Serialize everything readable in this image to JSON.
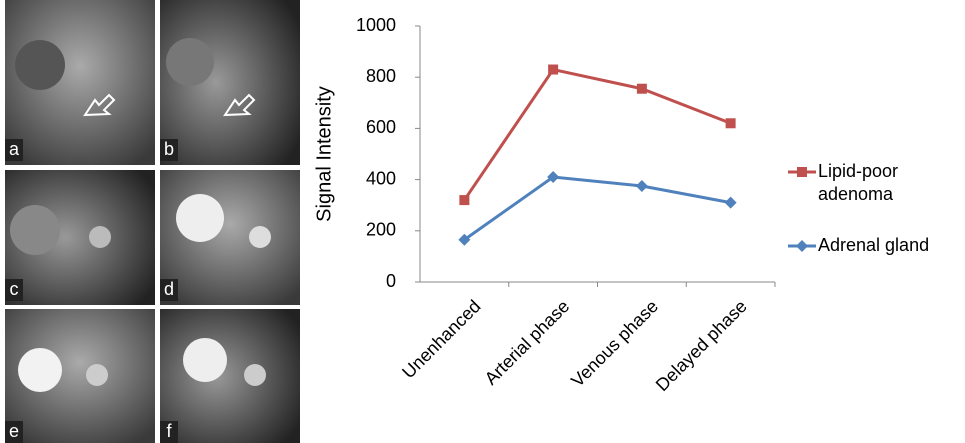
{
  "panel_labels": [
    "a",
    "b",
    "c",
    "d",
    "e",
    "f"
  ],
  "chart_data": {
    "type": "line",
    "y_label": "Signal Intensity",
    "categories": [
      "Unenhanced",
      "Arterial phase",
      "Venous phase",
      "Delayed phase"
    ],
    "series": [
      {
        "name": "Lipid-poor adenoma",
        "color": "#c0504d",
        "marker": "square",
        "values": [
          320,
          830,
          755,
          620
        ]
      },
      {
        "name": "Adrenal gland",
        "color": "#4f81bd",
        "marker": "diamond",
        "values": [
          165,
          410,
          375,
          310
        ]
      }
    ],
    "ylim": [
      0,
      1000
    ],
    "yticks": [
      0,
      200,
      400,
      600,
      800,
      1000
    ],
    "grid": false,
    "legend": "right"
  }
}
